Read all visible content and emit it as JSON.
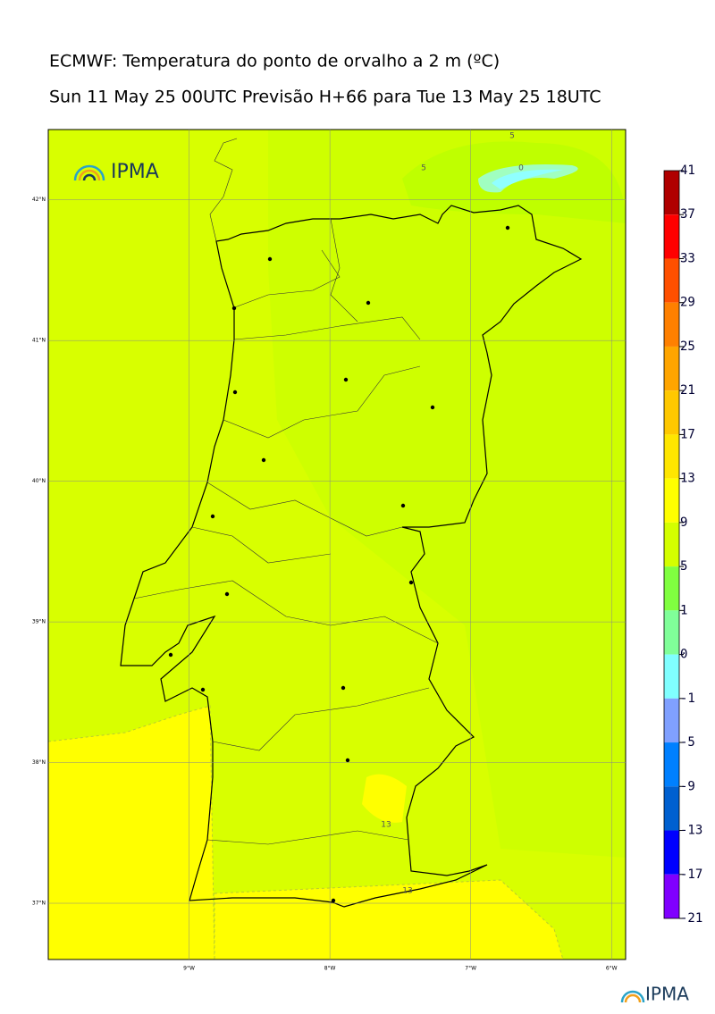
{
  "title": "ECMWF: Temperatura do ponto de orvalho a 2 m (ºC)",
  "subtitle": "Sun 11 May 25 00UTC Previsão H+66 para Tue 13 May 25 18UTC",
  "map": {
    "xlim": [
      -10,
      -5.9
    ],
    "ylim": [
      36.6,
      42.5
    ],
    "xticks": [
      {
        "value": -9,
        "label": "9°W"
      },
      {
        "value": -8,
        "label": "8°W"
      },
      {
        "value": -7,
        "label": "7°W"
      },
      {
        "value": -6,
        "label": "6°W"
      }
    ],
    "yticks": [
      {
        "value": 42,
        "label": "42°N"
      },
      {
        "value": 41,
        "label": "41°N"
      },
      {
        "value": 40,
        "label": "40°N"
      },
      {
        "value": 39,
        "label": "39°N"
      },
      {
        "value": 38,
        "label": "38°N"
      },
      {
        "value": 37,
        "label": "37°N"
      }
    ],
    "contour_labels": [
      "5",
      "0",
      "5",
      "13",
      "13"
    ]
  },
  "colorbar": {
    "levels": [
      41,
      37,
      33,
      29,
      25,
      21,
      17,
      13,
      9,
      5,
      1,
      0,
      -1,
      -5,
      -9,
      -13,
      -17,
      -21
    ],
    "colors": [
      "#b00000",
      "#ff0000",
      "#ff5000",
      "#ff8000",
      "#ffa500",
      "#ffc800",
      "#ffe600",
      "#ffff00",
      "#d4ff00",
      "#80ff40",
      "#80ff99",
      "#80ffff",
      "#80a0ff",
      "#0080ff",
      "#0060d0",
      "#0000ff",
      "#8000ff"
    ]
  },
  "logos": [
    "IPMA",
    "IPMA"
  ]
}
